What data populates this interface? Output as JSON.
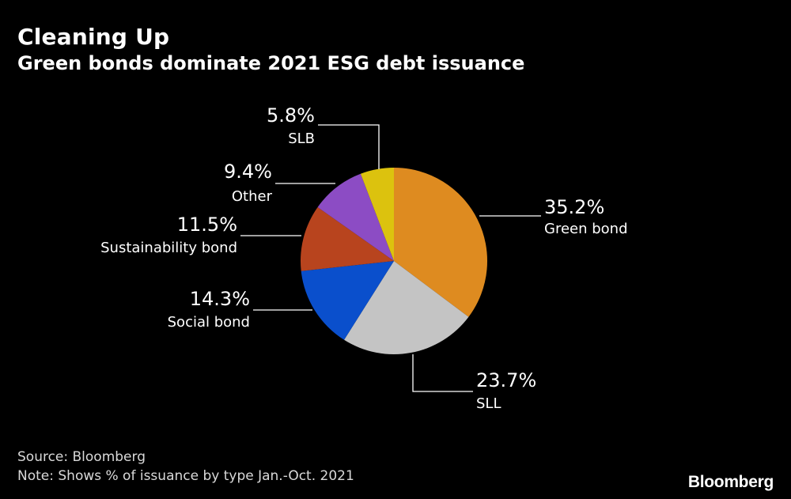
{
  "header": {
    "title": "Cleaning Up",
    "subtitle": "Green bonds dominate 2021 ESG debt issuance"
  },
  "footer": {
    "source": "Source: Bloomberg",
    "note": "Note: Shows % of issuance by type Jan.-Oct. 2021",
    "brand": "Bloomberg"
  },
  "chart_data": {
    "type": "pie",
    "title": "Cleaning Up",
    "subtitle": "Green bonds dominate 2021 ESG debt issuance",
    "slices": [
      {
        "name": "Green bond",
        "value": 35.2,
        "label": "35.2%",
        "color": "#DE8B20"
      },
      {
        "name": "SLL",
        "value": 23.7,
        "label": "23.7%",
        "color": "#C4C4C4"
      },
      {
        "name": "Social bond",
        "value": 14.3,
        "label": "14.3%",
        "color": "#0A4FCC"
      },
      {
        "name": "Sustainability bond",
        "value": 11.5,
        "label": "11.5%",
        "color": "#B8441E"
      },
      {
        "name": "Other",
        "value": 9.4,
        "label": "9.4%",
        "color": "#8C4CC4"
      },
      {
        "name": "SLB",
        "value": 5.8,
        "label": "5.8%",
        "color": "#DCC20E"
      }
    ],
    "start_position": "12 o'clock, clockwise",
    "legend": "none; labels with leader lines"
  }
}
